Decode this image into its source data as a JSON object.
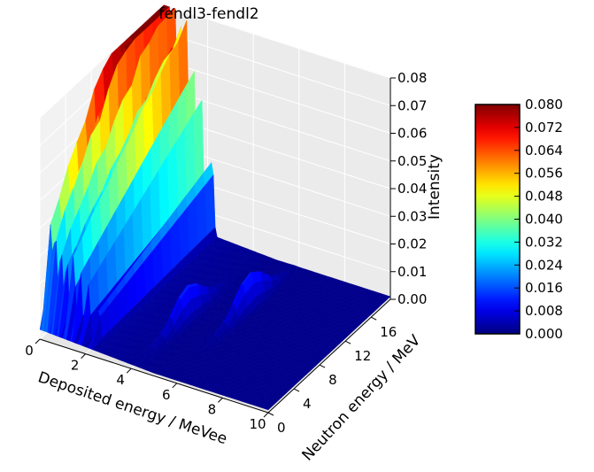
{
  "chart_data": {
    "type": "surface3d",
    "title": "fendl3-fendl2",
    "xlabel": "Deposited energy / MeVee",
    "ylabel": "Neutron energy / MeV",
    "zlabel": "Intensity",
    "xlim": [
      0,
      10
    ],
    "ylim": [
      0,
      19
    ],
    "zlim": [
      0,
      0.08
    ],
    "x_ticks": [
      "0",
      "2",
      "4",
      "6",
      "8",
      "10"
    ],
    "y_ticks": [
      "0",
      "4",
      "8",
      "12",
      "16"
    ],
    "z_ticks": [
      "0.00",
      "0.01",
      "0.02",
      "0.03",
      "0.04",
      "0.05",
      "0.06",
      "0.07",
      "0.08"
    ],
    "colormap": "jet",
    "colorbar": {
      "ticks": [
        "0.000",
        "0.008",
        "0.016",
        "0.024",
        "0.032",
        "0.040",
        "0.048",
        "0.056",
        "0.064",
        "0.072",
        "0.080"
      ],
      "min": 0,
      "max": 0.08
    },
    "grid": true,
    "ridges": [
      {
        "deposited_energy": 0.1,
        "peak_intensity": 0.075
      },
      {
        "deposited_energy": 0.3,
        "peak_intensity": 0.071
      },
      {
        "deposited_energy": 0.55,
        "peak_intensity": 0.062
      },
      {
        "deposited_energy": 0.8,
        "peak_intensity": 0.058
      },
      {
        "deposited_energy": 1.1,
        "peak_intensity": 0.066
      },
      {
        "deposited_energy": 1.4,
        "peak_intensity": 0.056
      },
      {
        "deposited_energy": 1.75,
        "peak_intensity": 0.047
      },
      {
        "deposited_energy": 2.2,
        "peak_intensity": 0.03
      }
    ],
    "background_profile": [
      {
        "neutron_energy": 4,
        "intensity": 0.014
      },
      {
        "neutron_energy": 8,
        "intensity": 0.022
      },
      {
        "neutron_energy": 12,
        "intensity": 0.031
      },
      {
        "neutron_energy": 16,
        "intensity": 0.037
      },
      {
        "neutron_energy": 19,
        "intensity": 0.04
      }
    ],
    "secondary_bumps": [
      {
        "deposited_energy": 4.2,
        "neutron_energy": 8,
        "intensity": 0.016
      },
      {
        "deposited_energy": 5.8,
        "neutron_energy": 12,
        "intensity": 0.017
      }
    ],
    "floor_intensity": 0.001
  }
}
